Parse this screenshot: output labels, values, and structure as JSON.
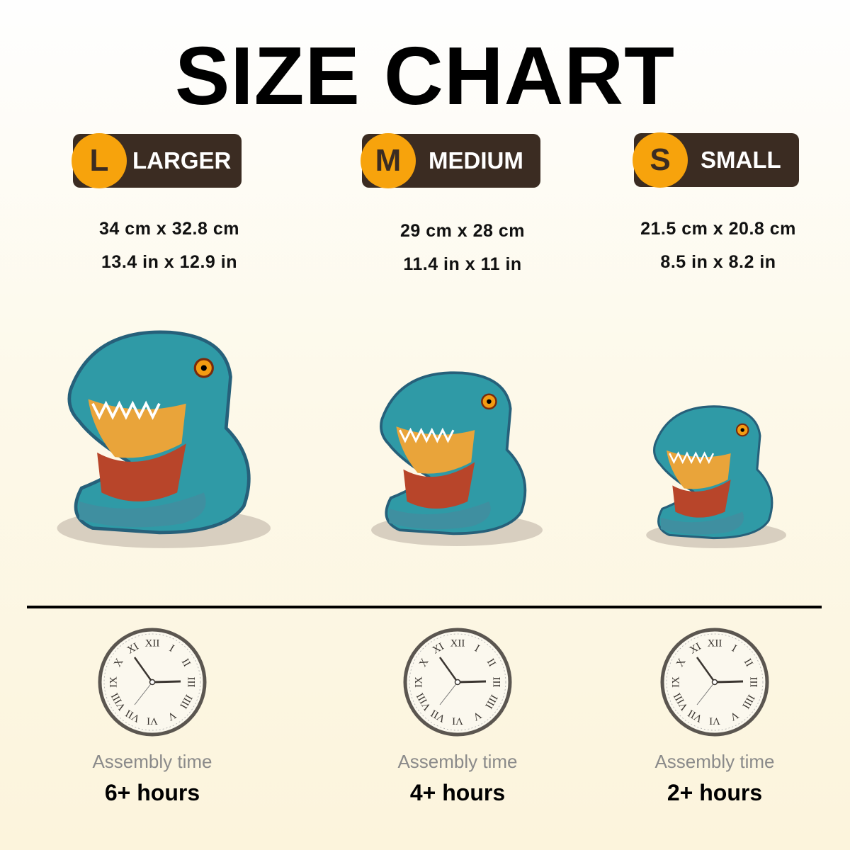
{
  "title": "SIZE CHART",
  "sizes": [
    {
      "letter": "L",
      "label": "LARGER",
      "metric": "34 cm x 32.8 cm",
      "imperial": "13.4 in x 12.9 in",
      "assembly_label": "Assembly time",
      "assembly_time": "6+ hours"
    },
    {
      "letter": "M",
      "label": "MEDIUM",
      "metric": "29 cm x 28 cm",
      "imperial": "11.4 in x 11 in",
      "assembly_label": "Assembly time",
      "assembly_time": "4+ hours"
    },
    {
      "letter": "S",
      "label": "SMALL",
      "metric": "21.5 cm x 20.8 cm",
      "imperial": "8.5 in x 8.2 in",
      "assembly_label": "Assembly time",
      "assembly_time": "2+ hours"
    }
  ],
  "colors": {
    "badge_bg": "#3b2c22",
    "badge_circle": "#f7a30c",
    "dino_teal": "#2f9aa6"
  },
  "icons": {
    "clock": "roman-clock-icon",
    "product": "t-rex-puzzle-image"
  }
}
